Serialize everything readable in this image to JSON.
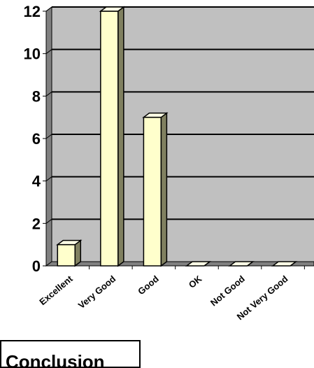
{
  "chart_data": {
    "type": "bar",
    "categories": [
      "Excellent",
      "Very Good",
      "Good",
      "OK",
      "Not Good",
      "Not Very Good"
    ],
    "values": [
      1,
      12,
      7,
      0,
      0,
      0
    ],
    "ylim": [
      0,
      12
    ],
    "yticks": [
      "0",
      "2",
      "4",
      "6",
      "8",
      "10",
      "12"
    ],
    "grid": true,
    "legend": "none",
    "style": "3d-column",
    "colors": {
      "plot_background": "#c0c0c0",
      "wall_side": "#808080",
      "floor": "#808080",
      "bar_front": "#ffffcc",
      "bar_side": "#808060",
      "bar_top": "#ffffe6",
      "gridline": "#000000"
    }
  },
  "cropped_label": {
    "text": "Conclusion"
  }
}
